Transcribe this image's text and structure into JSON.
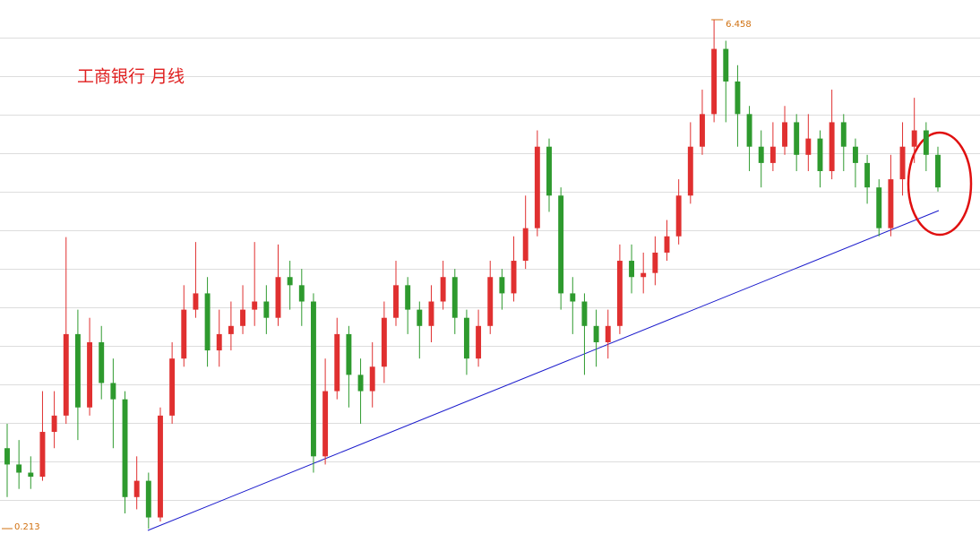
{
  "chart_data": {
    "type": "candlestick",
    "title": "工商银行 月线",
    "up_color": "#e03030",
    "down_color": "#2e9a2e",
    "label_color": "#d07010",
    "ylim": [
      0.147,
      6.7
    ],
    "max_label": 6.458,
    "min_label": 0.213,
    "open": [
      1.2,
      1.0,
      0.9,
      0.85,
      1.4,
      1.6,
      2.6,
      1.7,
      2.5,
      2.0,
      1.8,
      0.6,
      0.8,
      0.35,
      1.6,
      2.3,
      2.9,
      3.1,
      2.4,
      2.6,
      2.7,
      2.9,
      3.0,
      2.8,
      3.3,
      3.2,
      3.0,
      1.1,
      1.9,
      2.6,
      2.1,
      1.9,
      2.2,
      2.8,
      3.2,
      2.9,
      2.7,
      3.0,
      3.3,
      2.8,
      2.3,
      2.7,
      3.3,
      3.1,
      3.5,
      3.9,
      4.9,
      4.3,
      3.1,
      3.0,
      2.7,
      2.5,
      2.7,
      3.5,
      3.3,
      3.35,
      3.6,
      3.8,
      4.3,
      4.9,
      5.3,
      6.1,
      5.7,
      5.3,
      4.9,
      4.7,
      4.9,
      5.2,
      4.8,
      5.0,
      4.6,
      5.2,
      4.9,
      4.7,
      4.4,
      3.9,
      4.5,
      4.9,
      5.1,
      4.8
    ],
    "high": [
      1.5,
      1.3,
      1.1,
      1.9,
      1.9,
      3.79,
      2.9,
      2.8,
      2.7,
      2.3,
      1.9,
      1.1,
      0.9,
      1.7,
      2.5,
      3.2,
      3.73,
      3.3,
      2.9,
      3.0,
      3.2,
      3.73,
      3.2,
      3.7,
      3.5,
      3.4,
      3.1,
      2.3,
      2.8,
      2.7,
      2.3,
      2.5,
      3.0,
      3.5,
      3.3,
      3.0,
      3.2,
      3.5,
      3.4,
      2.9,
      2.9,
      3.5,
      3.4,
      3.8,
      4.3,
      5.1,
      5.0,
      4.4,
      3.3,
      3.1,
      2.9,
      2.9,
      3.7,
      3.7,
      3.6,
      3.8,
      4.0,
      4.5,
      5.2,
      5.6,
      6.458,
      6.2,
      5.9,
      5.4,
      5.1,
      5.2,
      5.4,
      5.3,
      5.3,
      5.1,
      5.6,
      5.3,
      5.0,
      4.8,
      4.5,
      4.8,
      5.2,
      5.5,
      5.2,
      4.9
    ],
    "low": [
      0.6,
      0.7,
      0.7,
      0.8,
      1.2,
      1.5,
      1.3,
      1.6,
      1.8,
      1.2,
      0.4,
      0.45,
      0.213,
      0.3,
      1.5,
      2.2,
      2.8,
      2.2,
      2.2,
      2.4,
      2.6,
      2.7,
      2.6,
      2.7,
      2.9,
      2.7,
      0.9,
      1.0,
      1.8,
      1.7,
      1.5,
      1.7,
      2.0,
      2.7,
      2.6,
      2.3,
      2.5,
      2.9,
      2.6,
      2.1,
      2.2,
      2.6,
      2.9,
      3.0,
      3.4,
      3.8,
      4.1,
      2.9,
      2.6,
      2.1,
      2.2,
      2.3,
      2.6,
      3.1,
      3.1,
      3.2,
      3.5,
      3.7,
      4.2,
      4.8,
      5.2,
      5.2,
      4.9,
      4.6,
      4.4,
      4.6,
      4.8,
      4.6,
      4.6,
      4.4,
      4.5,
      4.6,
      4.4,
      4.2,
      3.8,
      3.8,
      4.3,
      4.7,
      4.6,
      4.35
    ],
    "close": [
      1.0,
      0.9,
      0.85,
      1.4,
      1.6,
      2.6,
      1.7,
      2.5,
      2.0,
      1.8,
      0.6,
      0.8,
      0.35,
      1.6,
      2.3,
      2.9,
      3.1,
      2.4,
      2.6,
      2.7,
      2.9,
      3.0,
      2.8,
      3.3,
      3.2,
      3.0,
      1.1,
      1.9,
      2.6,
      2.1,
      1.9,
      2.2,
      2.8,
      3.2,
      2.9,
      2.7,
      3.0,
      3.3,
      2.8,
      2.3,
      2.7,
      3.3,
      3.1,
      3.5,
      3.9,
      4.9,
      4.3,
      3.1,
      3.0,
      2.7,
      2.5,
      2.7,
      3.5,
      3.3,
      3.35,
      3.6,
      3.8,
      4.3,
      4.9,
      5.3,
      6.1,
      5.7,
      5.3,
      4.9,
      4.7,
      4.9,
      5.2,
      4.8,
      5.0,
      4.6,
      5.2,
      4.9,
      4.7,
      4.4,
      3.9,
      4.5,
      4.9,
      5.1,
      4.8,
      4.4
    ]
  }
}
